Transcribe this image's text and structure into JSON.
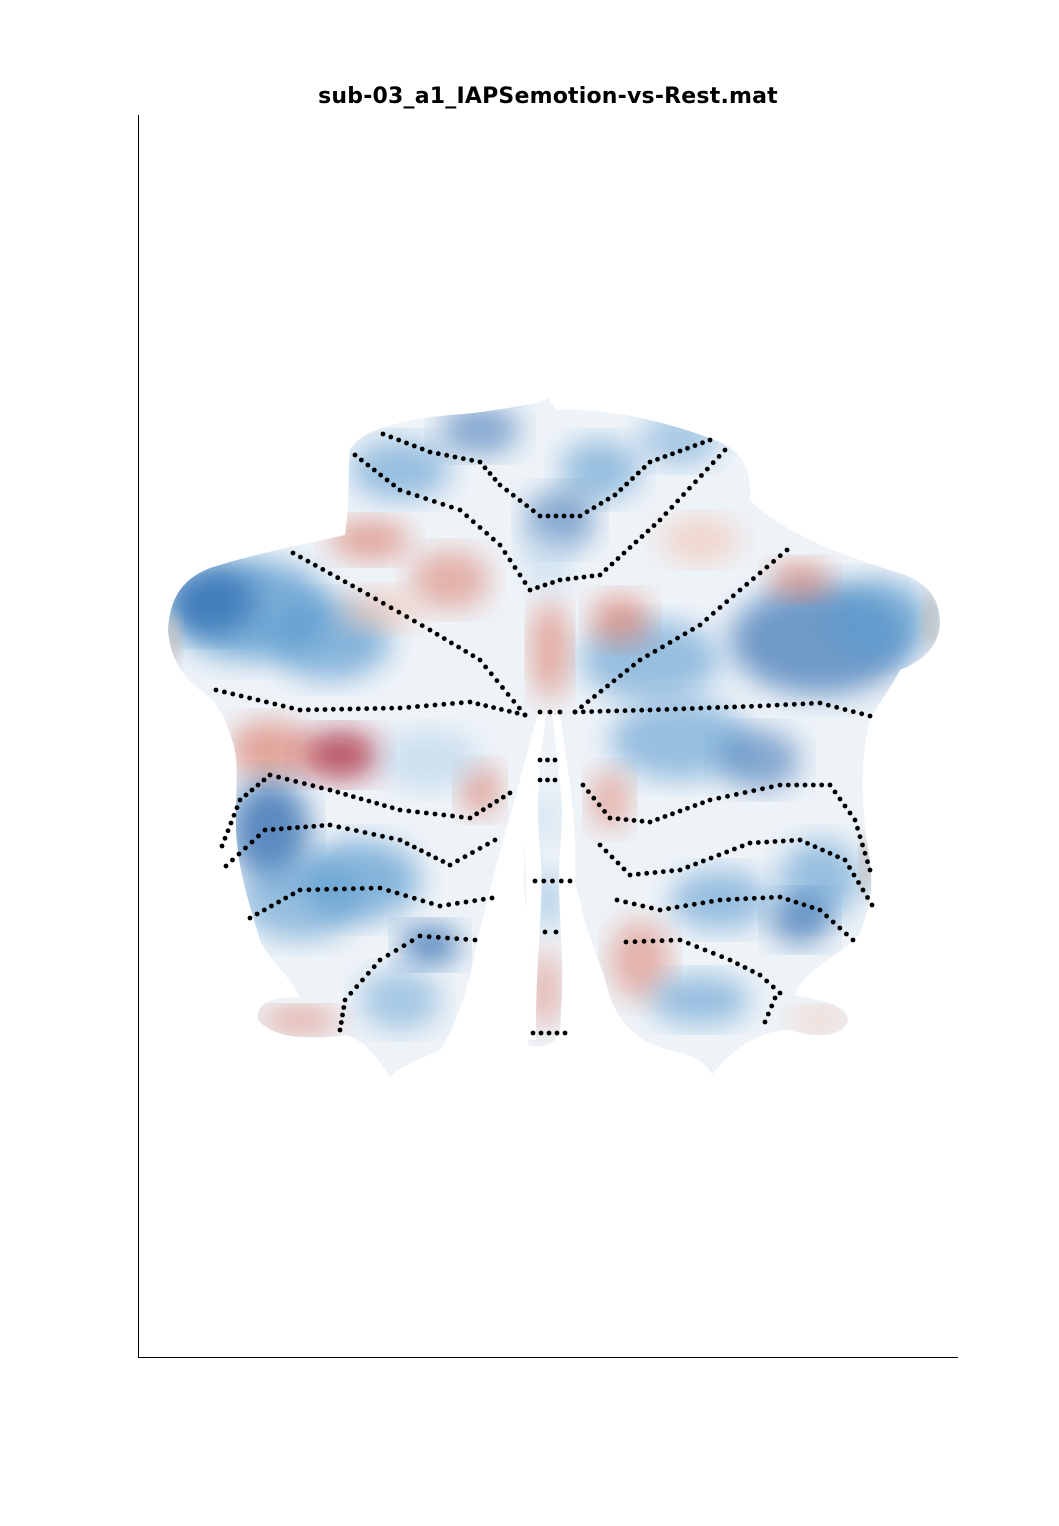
{
  "figure": {
    "title": "sub-03_a1_IAPSemotion-vs-Rest.mat"
  },
  "colors": {
    "negative_strong": "#1f5fa8",
    "negative_mid": "#5b9bcf",
    "negative_light": "#b6d3ea",
    "neutral": "#eef3f8",
    "positive_light": "#f2c0ab",
    "positive_mid": "#d9705a",
    "positive_strong": "#a5122b",
    "boundary_dots": "#000000",
    "missing": "#bdbdbd"
  },
  "map": {
    "colormap": "blue-white-red diverging",
    "boundaries_style": "dotted black lines"
  }
}
